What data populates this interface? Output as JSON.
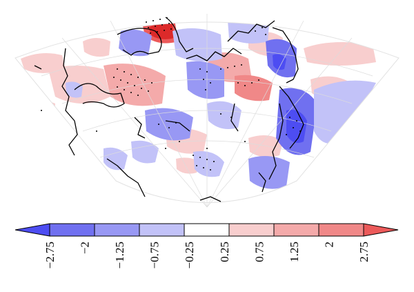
{
  "map": {
    "projection": "conic",
    "grid": true,
    "stipple": true
  },
  "colorbar": {
    "orientation": "horizontal",
    "extend": "both",
    "colors": [
      "#4d4df2",
      "#7070f0",
      "#9898f4",
      "#c2c2f8",
      "#ffffff",
      "#f8cece",
      "#f4aaaa",
      "#f08888",
      "#ec5a5a"
    ],
    "tick_labels": [
      "−2.75",
      "−2",
      "−1.25",
      "−0.75",
      "−0.25",
      "0.25",
      "0.75",
      "1.25",
      "2",
      "2.75"
    ]
  }
}
